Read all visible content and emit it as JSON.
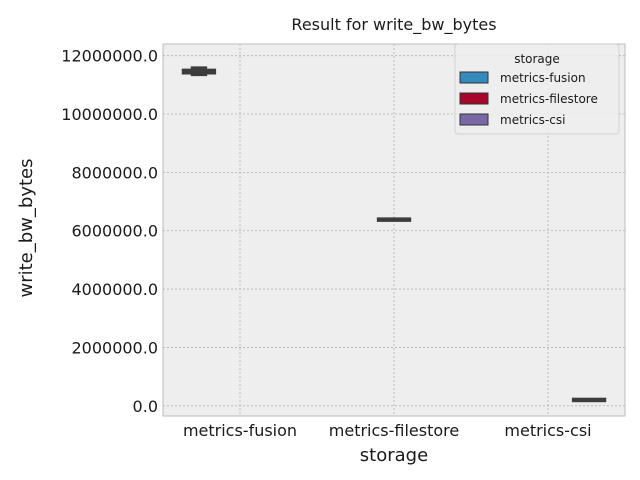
{
  "chart_data": {
    "type": "box",
    "title": "Result for write_bw_bytes",
    "xlabel": "storage",
    "ylabel": "write_bw_bytes",
    "categories": [
      "metrics-fusion",
      "metrics-filestore",
      "metrics-csi"
    ],
    "ylim": [
      -350000,
      12400000
    ],
    "yticks": [
      0,
      2000000,
      4000000,
      6000000,
      8000000,
      10000000,
      12000000
    ],
    "ytick_labels": [
      "0.0",
      "2000000.0",
      "4000000.0",
      "6000000.0",
      "8000000.0",
      "10000000.0",
      "12000000.0"
    ],
    "grid": true,
    "legend": {
      "title": "storage",
      "placement": "top-right",
      "entries": [
        "metrics-fusion",
        "metrics-filestore",
        "metrics-csi"
      ]
    },
    "series": [
      {
        "name": "metrics-fusion",
        "category_index": 0,
        "min": 11350000,
        "q1": 11380000,
        "median": 11450000,
        "q3": 11530000,
        "max": 11580000
      },
      {
        "name": "metrics-filestore",
        "category_index": 1,
        "min": 6380000,
        "q1": 6380000,
        "median": 6380000,
        "q3": 6380000,
        "max": 6380000
      },
      {
        "name": "metrics-csi",
        "category_index": 2,
        "min": 200000,
        "q1": 200000,
        "median": 200000,
        "q3": 200000,
        "max": 200000
      }
    ],
    "colors": {
      "metrics-fusion": "#348ABD",
      "metrics-filestore": "#A60628",
      "metrics-csi": "#7A68A6",
      "plot_background": "#EEEEEE",
      "grid": "#B2B2B2",
      "box_line": "#3d3d3d"
    }
  }
}
